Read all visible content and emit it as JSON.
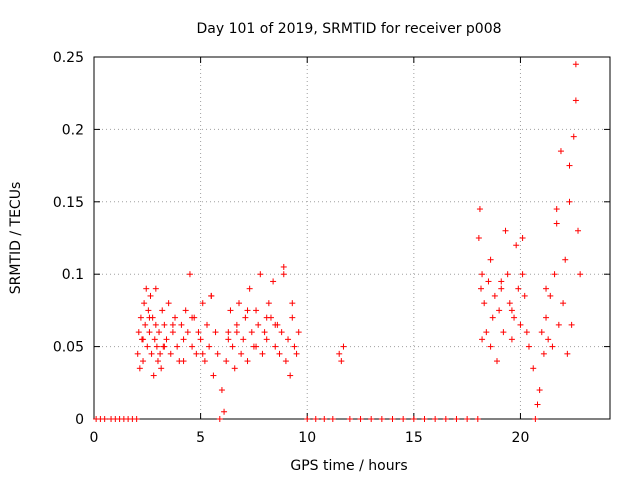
{
  "chart_data": {
    "type": "scatter",
    "title": "Day 101 of 2019, SRMTID for receiver p008",
    "xlabel": "GPS time / hours",
    "ylabel": "SRMTID / TECUs",
    "xlim": [
      0,
      24.2
    ],
    "ylim": [
      0,
      0.25
    ],
    "xticks": [
      0,
      5,
      10,
      15,
      20
    ],
    "yticks": [
      0,
      0.05,
      0.1,
      0.15,
      0.2,
      0.25
    ],
    "xtick_labels": [
      "0",
      "5",
      "10",
      "15",
      "20"
    ],
    "ytick_labels": [
      "0",
      "0.05",
      "0.1",
      "0.15",
      "0.2",
      "0.25"
    ],
    "grid": true,
    "marker": "plus",
    "color": "#ff0000",
    "series": [
      {
        "name": "SRMTID",
        "x": [
          0.1,
          0.3,
          0.5,
          0.8,
          1.0,
          1.2,
          1.4,
          1.6,
          1.8,
          2.0,
          2.05,
          2.1,
          2.15,
          2.2,
          2.25,
          2.3,
          2.35,
          2.4,
          2.45,
          2.5,
          2.55,
          2.6,
          2.65,
          2.7,
          2.75,
          2.8,
          2.85,
          2.9,
          2.95,
          3.0,
          3.05,
          3.1,
          3.15,
          3.2,
          3.25,
          3.3,
          3.4,
          3.5,
          3.6,
          3.7,
          3.8,
          3.9,
          4.0,
          4.1,
          4.2,
          4.3,
          4.4,
          4.5,
          4.6,
          4.7,
          4.8,
          4.9,
          5.0,
          5.1,
          5.2,
          5.3,
          5.4,
          5.5,
          5.6,
          5.7,
          5.8,
          5.9,
          6.0,
          6.1,
          6.2,
          6.3,
          6.4,
          6.5,
          6.6,
          6.7,
          6.8,
          6.9,
          7.0,
          7.1,
          7.2,
          7.3,
          7.4,
          7.5,
          7.6,
          7.7,
          7.8,
          7.9,
          8.0,
          8.1,
          8.2,
          8.3,
          8.4,
          8.5,
          8.6,
          8.7,
          8.8,
          8.9,
          9.0,
          9.1,
          9.2,
          9.3,
          9.4,
          9.5,
          9.6,
          10.0,
          10.4,
          10.8,
          11.2,
          11.5,
          11.6,
          11.7,
          12.0,
          12.5,
          13.0,
          13.5,
          14.0,
          14.5,
          15.0,
          15.5,
          16.0,
          16.5,
          17.0,
          17.5,
          18.0,
          18.05,
          18.1,
          18.15,
          18.2,
          18.3,
          18.4,
          18.5,
          18.6,
          18.7,
          18.8,
          18.9,
          19.0,
          19.1,
          19.2,
          19.3,
          19.4,
          19.5,
          19.6,
          19.7,
          19.8,
          19.9,
          20.0,
          20.1,
          20.2,
          20.3,
          20.4,
          20.6,
          20.7,
          20.8,
          20.9,
          21.0,
          21.1,
          21.2,
          21.3,
          21.4,
          21.5,
          21.6,
          21.7,
          21.8,
          21.9,
          22.0,
          22.1,
          22.2,
          22.3,
          22.4,
          22.5,
          22.6,
          22.7,
          22.8,
          2.3,
          2.6,
          2.9,
          3.3,
          3.7,
          4.2,
          4.6,
          5.1,
          5.5,
          6.3,
          6.7,
          7.2,
          7.6,
          8.1,
          8.5,
          8.9,
          9.3,
          18.2,
          18.6,
          19.1,
          19.6,
          20.1,
          21.2,
          21.7,
          22.3,
          22.6
        ],
        "y": [
          0,
          0,
          0,
          0,
          0,
          0,
          0,
          0,
          0,
          0,
          0.045,
          0.06,
          0.035,
          0.07,
          0.055,
          0.04,
          0.08,
          0.065,
          0.09,
          0.05,
          0.075,
          0.06,
          0.085,
          0.045,
          0.07,
          0.03,
          0.055,
          0.065,
          0.05,
          0.04,
          0.06,
          0.045,
          0.035,
          0.075,
          0.05,
          0.065,
          0.055,
          0.08,
          0.045,
          0.06,
          0.07,
          0.05,
          0.04,
          0.065,
          0.055,
          0.075,
          0.06,
          0.1,
          0.05,
          0.07,
          0.045,
          0.06,
          0.055,
          0.08,
          0.04,
          0.065,
          0.05,
          0.085,
          0.03,
          0.06,
          0.045,
          0.0,
          0.02,
          0.005,
          0.04,
          0.06,
          0.075,
          0.05,
          0.035,
          0.065,
          0.08,
          0.045,
          0.055,
          0.07,
          0.04,
          0.09,
          0.06,
          0.05,
          0.075,
          0.065,
          0.1,
          0.045,
          0.06,
          0.055,
          0.08,
          0.07,
          0.095,
          0.05,
          0.065,
          0.045,
          0.06,
          0.105,
          0.04,
          0.055,
          0.03,
          0.07,
          0.05,
          0.045,
          0.06,
          0,
          0,
          0,
          0,
          0.045,
          0.04,
          0.05,
          0,
          0,
          0,
          0,
          0,
          0,
          0,
          0,
          0,
          0,
          0,
          0,
          0,
          0.125,
          0.145,
          0.09,
          0.1,
          0.08,
          0.06,
          0.095,
          0.05,
          0.07,
          0.085,
          0.04,
          0.075,
          0.09,
          0.06,
          0.13,
          0.1,
          0.08,
          0.055,
          0.07,
          0.12,
          0.09,
          0.065,
          0.1,
          0.085,
          0.06,
          0.05,
          0.035,
          0.0,
          0.01,
          0.02,
          0.06,
          0.045,
          0.07,
          0.055,
          0.085,
          0.05,
          0.1,
          0.135,
          0.065,
          0.185,
          0.08,
          0.11,
          0.045,
          0.15,
          0.065,
          0.195,
          0.245,
          0.13,
          0.1,
          0.055,
          0.07,
          0.09,
          0.05,
          0.065,
          0.04,
          0.07,
          0.045,
          0.085,
          0.055,
          0.06,
          0.075,
          0.05,
          0.07,
          0.065,
          0.1,
          0.08,
          0.055,
          0.11,
          0.095,
          0.075,
          0.125,
          0.09,
          0.145,
          0.175,
          0.22
        ]
      }
    ]
  }
}
